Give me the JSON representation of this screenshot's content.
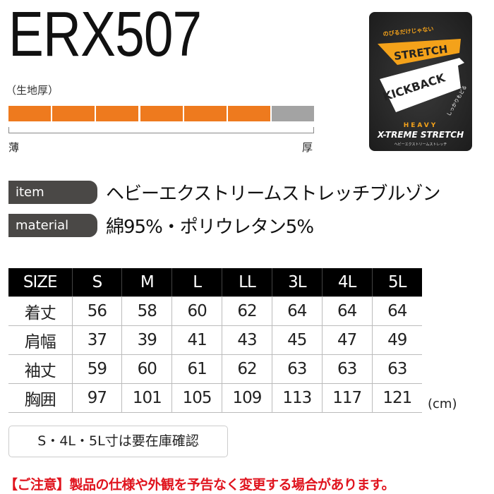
{
  "title": "ERX507",
  "thickness": {
    "label": "（生地厚）",
    "level": 6,
    "max": 7,
    "min_label": "薄",
    "max_label": "厚",
    "fill_color": "#ee7a1e",
    "empty_color": "#a3a3a3"
  },
  "logo": {
    "top_text": "のびるだけじゃない",
    "stretch": "STRETCH",
    "kickback": "KICKBACK",
    "sub": "しっかりもどる",
    "heavy": "HEAVY",
    "brand": "X-TREME STRETCH",
    "bottom": "ヘビーエクストリームストレッチ"
  },
  "item": {
    "label": "item",
    "value": "ヘビーエクストリームストレッチブルゾン"
  },
  "material": {
    "label": "material",
    "value": "綿95%・ポリウレタン5%"
  },
  "size_table": {
    "headers": [
      "SIZE",
      "S",
      "M",
      "L",
      "LL",
      "3L",
      "4L",
      "5L"
    ],
    "rows": [
      [
        "着丈",
        "56",
        "58",
        "60",
        "62",
        "64",
        "64",
        "64"
      ],
      [
        "肩幅",
        "37",
        "39",
        "41",
        "43",
        "45",
        "47",
        "49"
      ],
      [
        "袖丈",
        "59",
        "60",
        "61",
        "62",
        "63",
        "63",
        "63"
      ],
      [
        "胸囲",
        "97",
        "101",
        "105",
        "109",
        "113",
        "117",
        "121"
      ]
    ],
    "unit": "(cm)"
  },
  "note": "S・4L・5L寸は要在庫確認",
  "warning": "【ご注意】製品の仕様や外観を予告なく変更する場合があります。"
}
